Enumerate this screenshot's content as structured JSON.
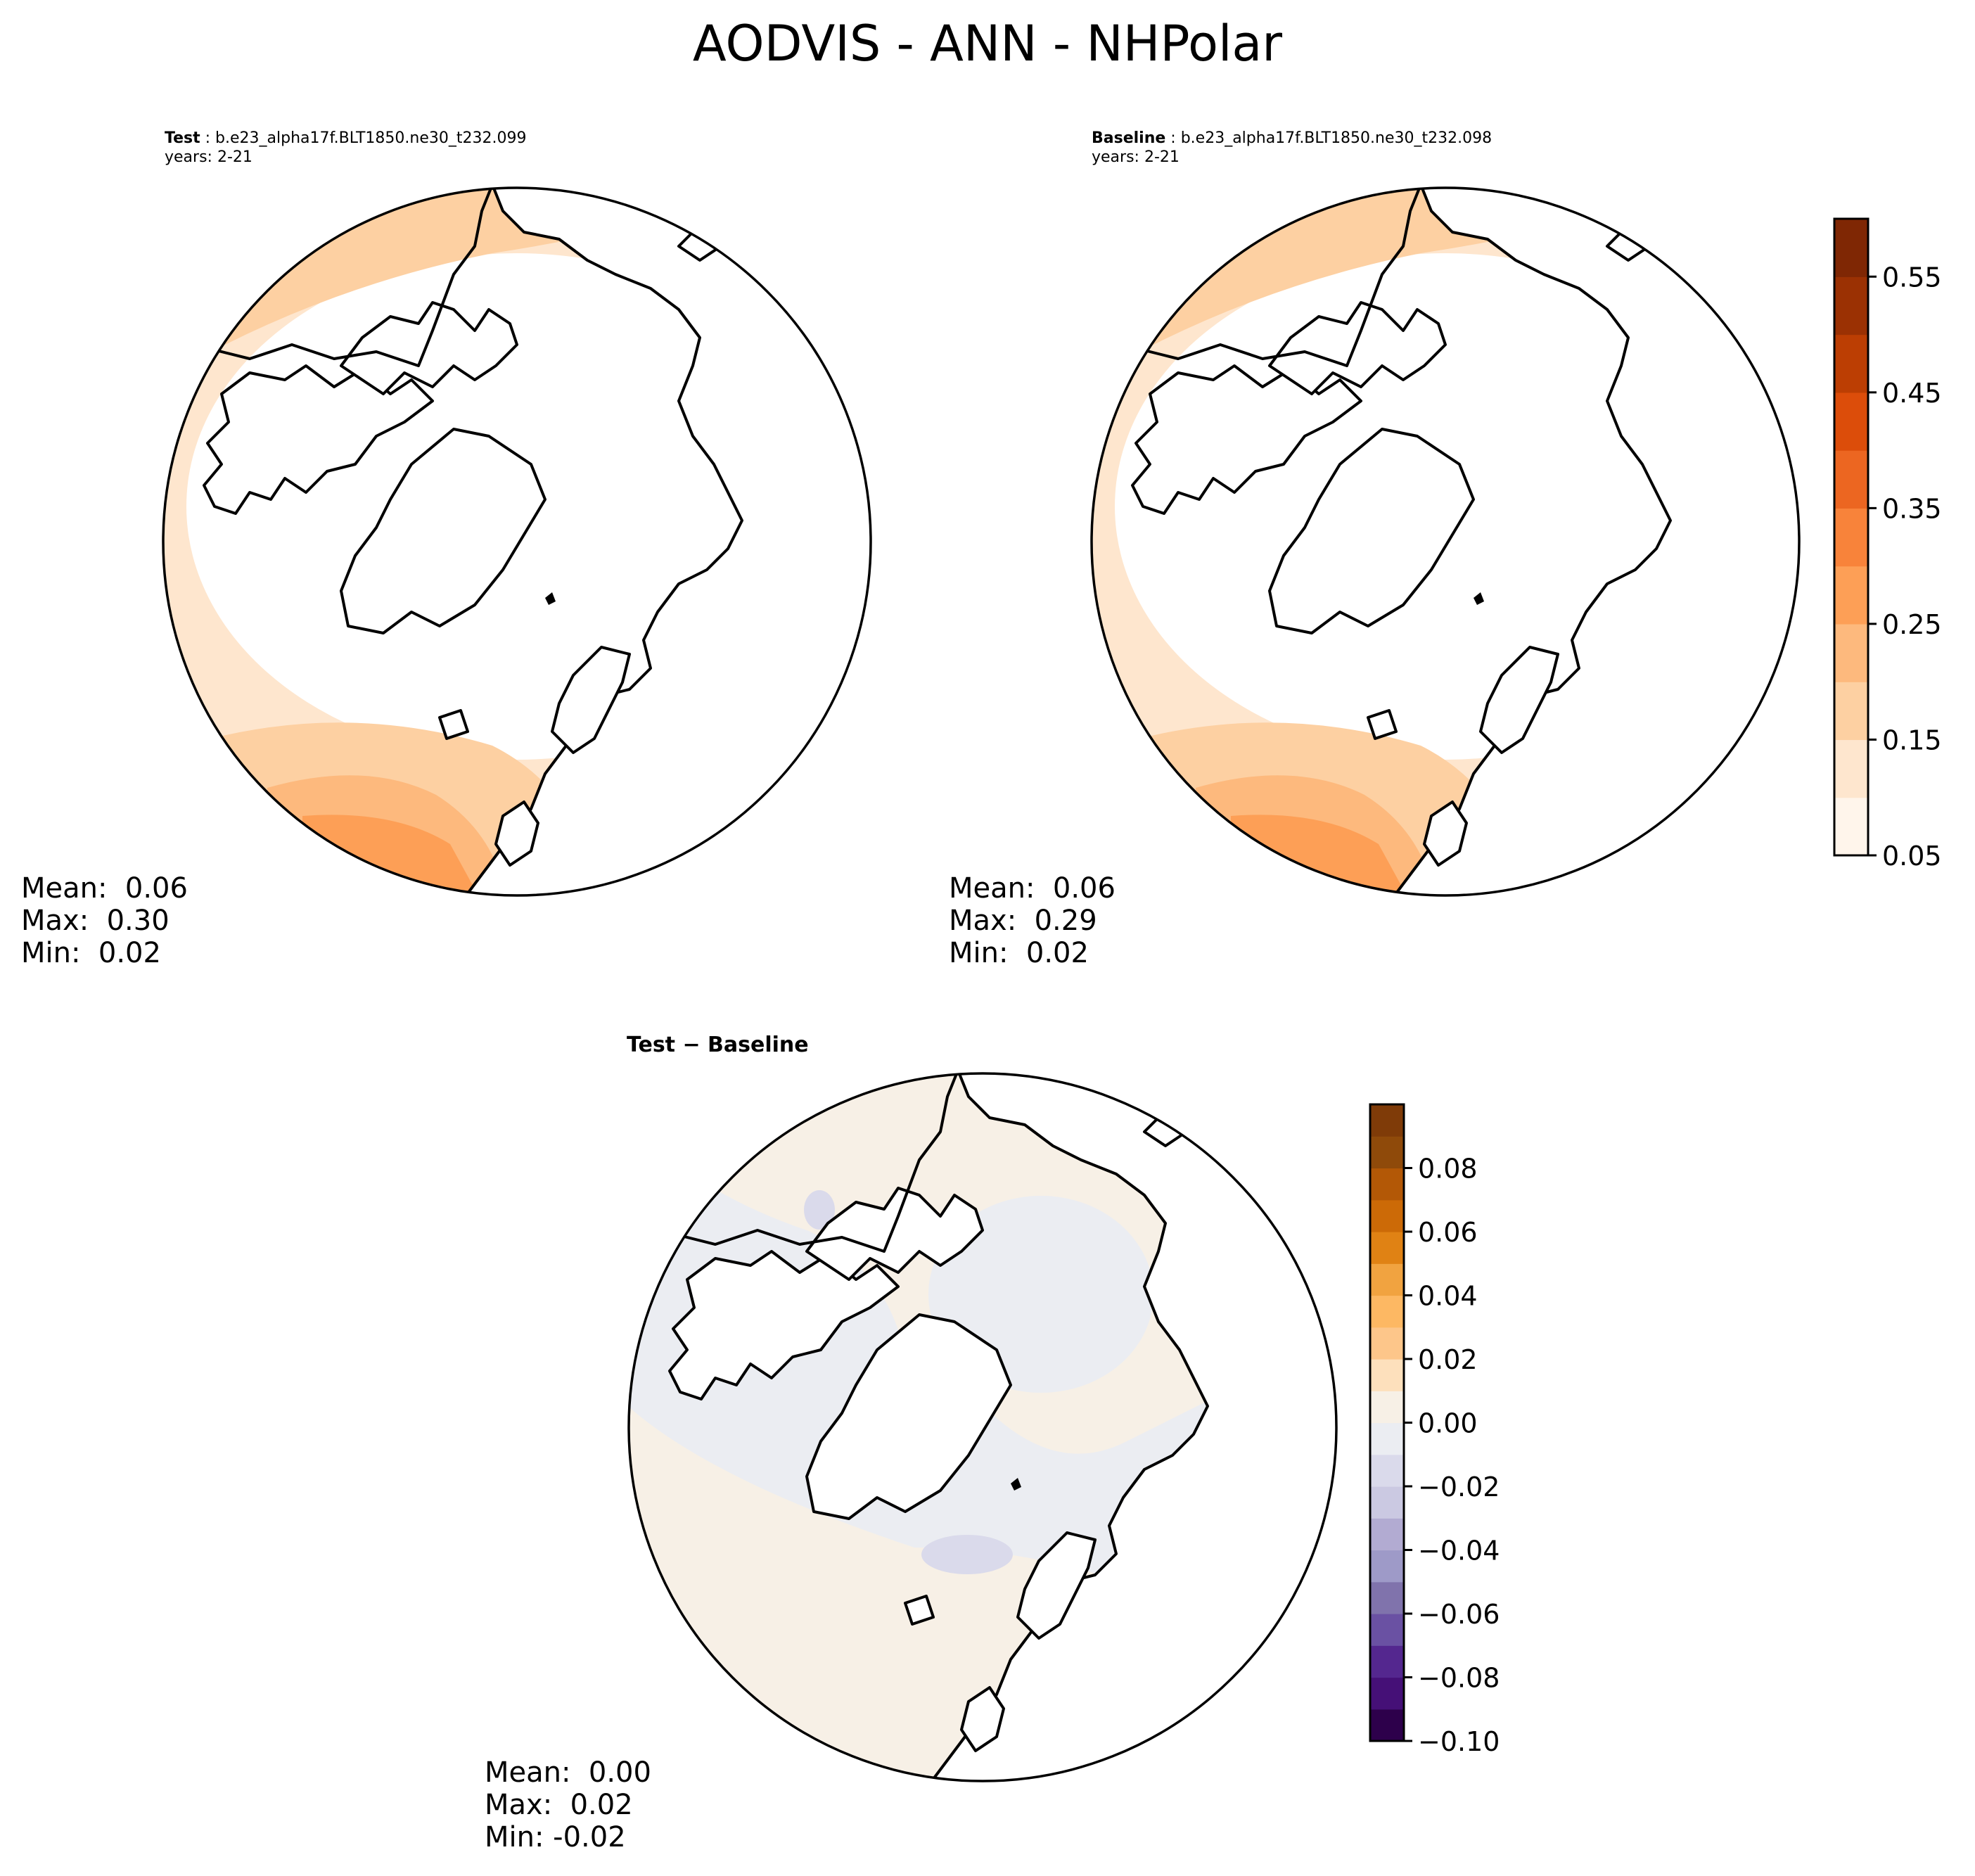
{
  "suptitle": "AODVIS - ANN - NHPolar",
  "panels": {
    "test": {
      "label": "Test",
      "case": "b.e23_alpha17f.BLT1850.ne30_t232.099",
      "years": "years: 2-21",
      "stats": {
        "mean": "Mean:  0.06",
        "max": "Max:  0.30",
        "min": "Min:  0.02"
      }
    },
    "baseline": {
      "label": "Baseline",
      "case": "b.e23_alpha17f.BLT1850.ne30_t232.098",
      "years": "years: 2-21",
      "stats": {
        "mean": "Mean:  0.06",
        "max": "Max:  0.29",
        "min": "Min:  0.02"
      }
    },
    "diff": {
      "title": "Test − Baseline",
      "stats": {
        "mean": "Mean:  0.00",
        "max": "Max:  0.02",
        "min": "Min: -0.02"
      }
    }
  },
  "chart_data": [
    {
      "type": "heatmap",
      "panel": "test",
      "projection": "north-polar-stereographic",
      "field": "AODVIS",
      "colorbar": {
        "levels": [
          0.05,
          0.1,
          0.15,
          0.2,
          0.25,
          0.3,
          0.35,
          0.4,
          0.45,
          0.5,
          0.55
        ],
        "colors": [
          "#fff5eb",
          "#fee6ce",
          "#fdd0a2",
          "#fdb97d",
          "#fd9f56",
          "#f8833a",
          "#ec6621",
          "#dc4d0a",
          "#bc3e03",
          "#9b3103",
          "#7f2704"
        ],
        "tick_labels": [
          "0.55",
          "0.45",
          "0.35",
          "0.25",
          "0.15",
          "0.05"
        ],
        "ticks": [
          0.55,
          0.45,
          0.35,
          0.25,
          0.15,
          0.05
        ]
      },
      "stats": {
        "mean": 0.06,
        "max": 0.3,
        "min": 0.02
      }
    },
    {
      "type": "heatmap",
      "panel": "baseline",
      "projection": "north-polar-stereographic",
      "field": "AODVIS",
      "stats": {
        "mean": 0.06,
        "max": 0.29,
        "min": 0.02
      }
    },
    {
      "type": "heatmap",
      "panel": "diff",
      "projection": "north-polar-stereographic",
      "field": "AODVIS difference",
      "colorbar": {
        "levels": [
          -0.1,
          -0.09,
          -0.08,
          -0.07,
          -0.06,
          -0.05,
          -0.04,
          -0.03,
          -0.02,
          -0.01,
          0.0,
          0.01,
          0.02,
          0.03,
          0.04,
          0.05,
          0.06,
          0.07,
          0.08,
          0.09
        ],
        "colors": [
          "#2d004b",
          "#451077",
          "#54278f",
          "#6a51a3",
          "#8073ac",
          "#9e9ac8",
          "#b2abd2",
          "#cbc9e2",
          "#dadaeb",
          "#ebedf2",
          "#f7f0e6",
          "#fde0bc",
          "#fdc68a",
          "#fdb863",
          "#f1a340",
          "#e08214",
          "#cc6a07",
          "#b35806",
          "#8f4a0a",
          "#7f3b08"
        ],
        "tick_labels": [
          "0.08",
          "0.06",
          "0.04",
          "0.02",
          "0.00",
          "−0.02",
          "−0.04",
          "−0.06",
          "−0.08",
          "−0.10"
        ],
        "ticks": [
          0.08,
          0.06,
          0.04,
          0.02,
          0.0,
          -0.02,
          -0.04,
          -0.06,
          -0.08,
          -0.1
        ]
      },
      "stats": {
        "mean": 0.0,
        "max": 0.02,
        "min": -0.02
      }
    }
  ]
}
